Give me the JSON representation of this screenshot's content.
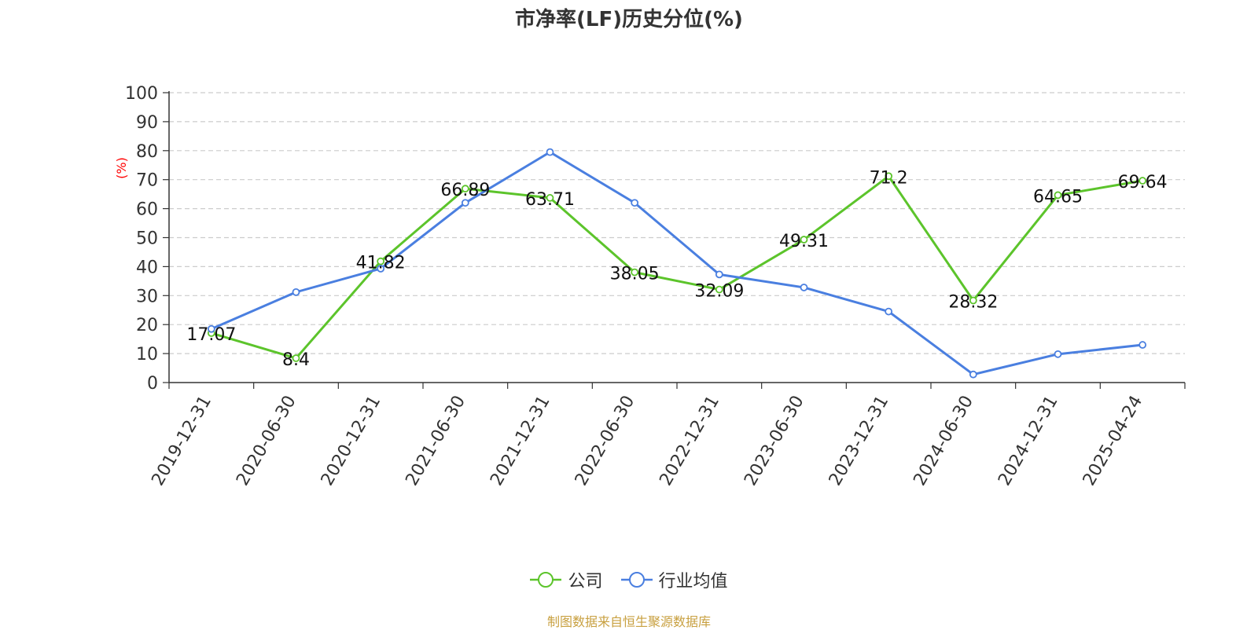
{
  "chart_data": {
    "type": "line",
    "title": "市净率(LF)历史分位(%)",
    "ylabel": "(%)",
    "xlabel": "",
    "ylim": [
      0,
      100
    ],
    "yticks": [
      0,
      10,
      20,
      30,
      40,
      50,
      60,
      70,
      80,
      90,
      100
    ],
    "grid": true,
    "legend_position": "bottom",
    "categories": [
      "2019-12-31",
      "2020-06-30",
      "2020-12-31",
      "2021-06-30",
      "2021-12-31",
      "2022-06-30",
      "2022-12-31",
      "2023-06-30",
      "2023-12-31",
      "2024-06-30",
      "2024-12-31",
      "2025-04-24"
    ],
    "series": [
      {
        "name": "公司",
        "color": "#5cc42b",
        "values": [
          17.07,
          8.4,
          41.82,
          66.89,
          63.71,
          38.05,
          32.09,
          49.31,
          71.2,
          28.32,
          64.65,
          69.64
        ],
        "labels": [
          "17.07",
          "8.4",
          "41.82",
          "66.89",
          "63.71",
          "38.05",
          "32.09",
          "49.31",
          "71.2",
          "28.32",
          "64.65",
          "69.64"
        ]
      },
      {
        "name": "行业均值",
        "color": "#4a7fe0",
        "values": [
          18.5,
          31.2,
          39.3,
          62.0,
          79.5,
          62.0,
          37.3,
          32.8,
          24.5,
          2.8,
          9.8,
          13.0
        ]
      }
    ]
  },
  "legend": {
    "company_label": "公司",
    "industry_label": "行业均值"
  },
  "footer": {
    "source": "制图数据来自恒生聚源数据库"
  },
  "colors": {
    "axis_label": "#ff0000",
    "source_text": "#c8a040"
  }
}
